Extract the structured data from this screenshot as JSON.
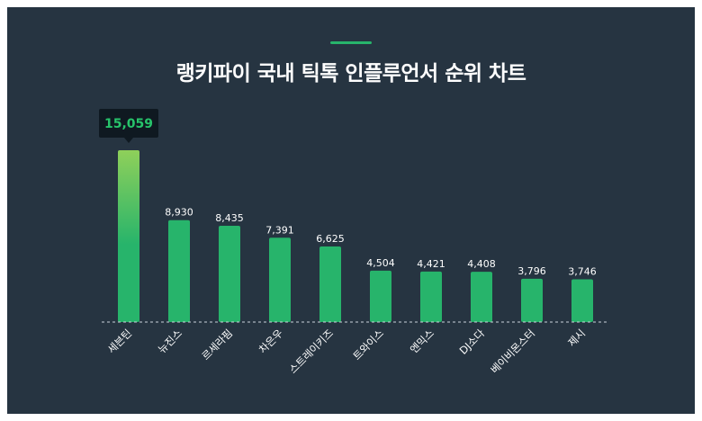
{
  "title": "랭키파이 국내 틱톡 인플루언서 순위 차트",
  "colors": {
    "background": "#263441",
    "accent": "#27b46b",
    "bar": "#27b46b",
    "bar_top_gradient": "#8fd05a",
    "tooltip_bg": "#0f1921",
    "tooltip_text": "#27c46b",
    "baseline": "#c9d2da"
  },
  "chart_data": {
    "type": "bar",
    "title": "랭키파이 국내 틱톡 인플루언서 순위 차트",
    "categories": [
      "세븐틴",
      "뉴진스",
      "르세라핌",
      "차은우",
      "스트레이키즈",
      "트와이스",
      "엔믹스",
      "DJ소다",
      "베이비몬스터",
      "제시"
    ],
    "values": [
      15059,
      8930,
      8435,
      7391,
      6625,
      4504,
      4421,
      4408,
      3796,
      3746
    ],
    "value_labels": [
      "15,059",
      "8,930",
      "8,435",
      "7,391",
      "6,625",
      "4,504",
      "4,421",
      "4,408",
      "3,796",
      "3,746"
    ],
    "highlight_index": 0,
    "xlabel": "",
    "ylabel": "",
    "ylim": [
      0,
      15059
    ],
    "grid": false,
    "legend": "none"
  }
}
